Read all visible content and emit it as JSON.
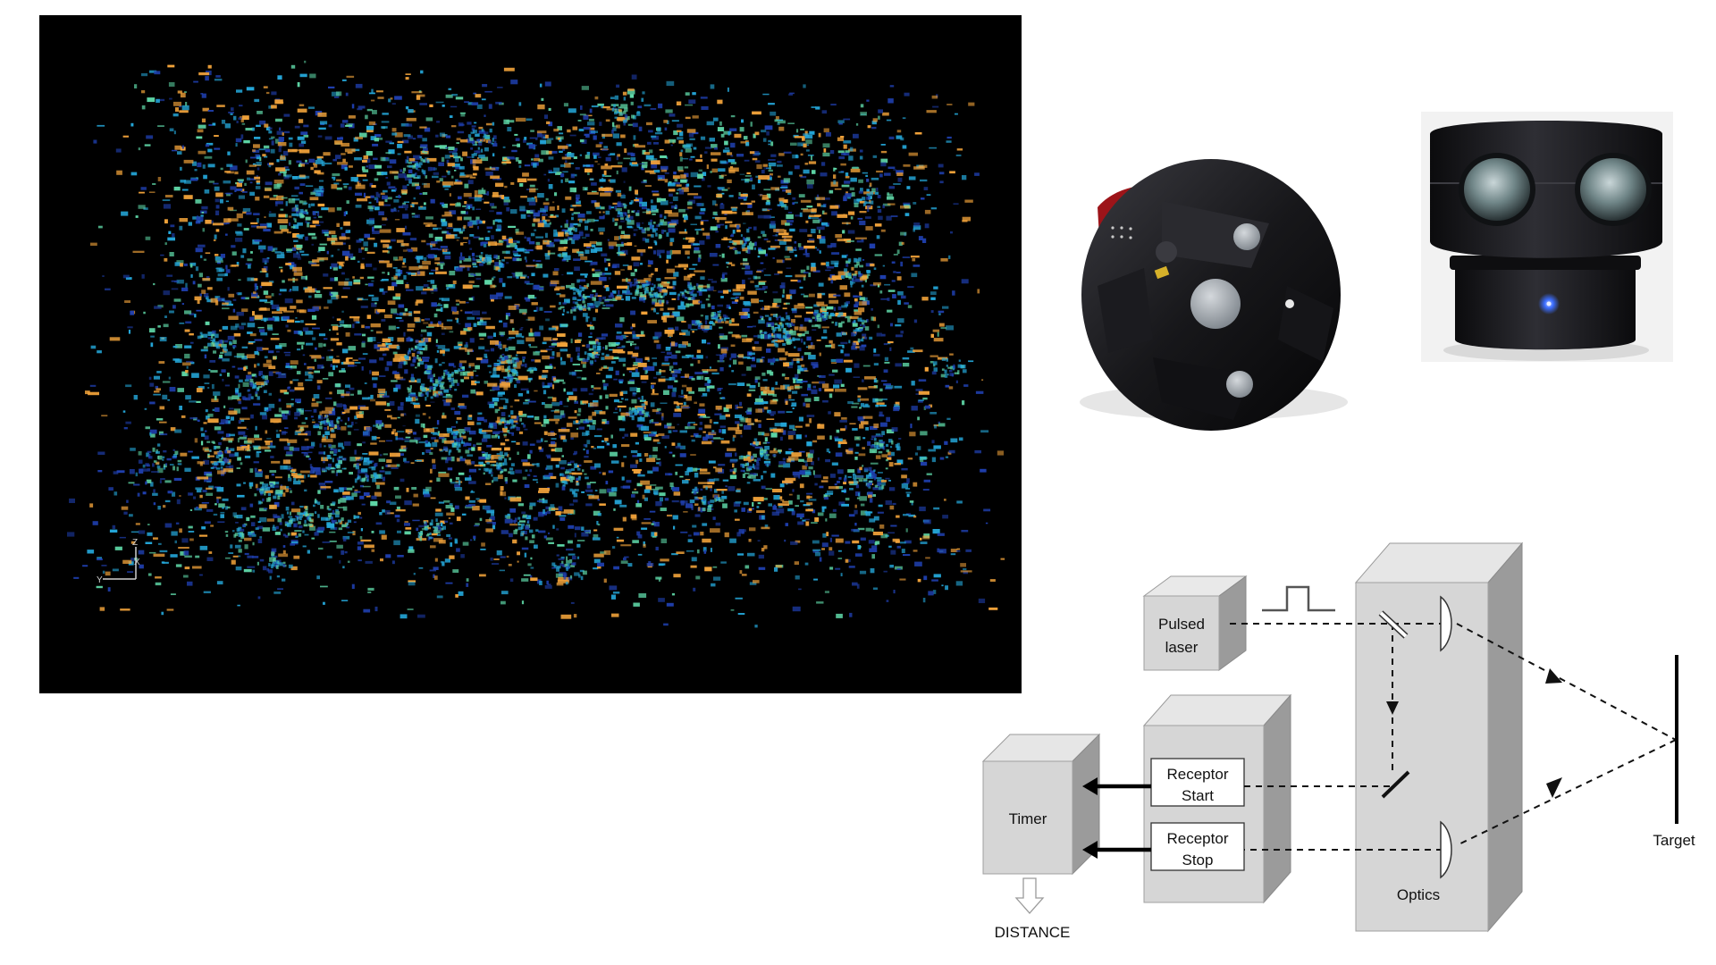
{
  "diagram": {
    "pulsed_laser": {
      "line1": "Pulsed",
      "line2": "laser"
    },
    "receptor_start": {
      "line1": "Receptor",
      "line2": "Start"
    },
    "receptor_stop": {
      "line1": "Receptor",
      "line2": "Stop"
    },
    "timer": "Timer",
    "optics": "Optics",
    "target": "Target",
    "distance": "DISTANCE"
  },
  "pointcloud": {
    "axis_labels": {
      "z": "Z",
      "x": "X",
      "y": "Y"
    },
    "palette": {
      "background": "#000000",
      "low": "#1f3fae",
      "mid": "#24a6d8",
      "high": "#5ed6a6",
      "peak": "#f2a33a"
    }
  },
  "images": [
    {
      "name": "lidar-point-cloud",
      "kind": "point-cloud-render"
    },
    {
      "name": "lidar-sensor-unit-1",
      "kind": "product-photo",
      "body_color": "#1d1d20",
      "accent_color": "#a4161c"
    },
    {
      "name": "lidar-sensor-unit-2",
      "kind": "product-photo",
      "body_color": "#202024",
      "led_color": "#3b6dff"
    }
  ]
}
